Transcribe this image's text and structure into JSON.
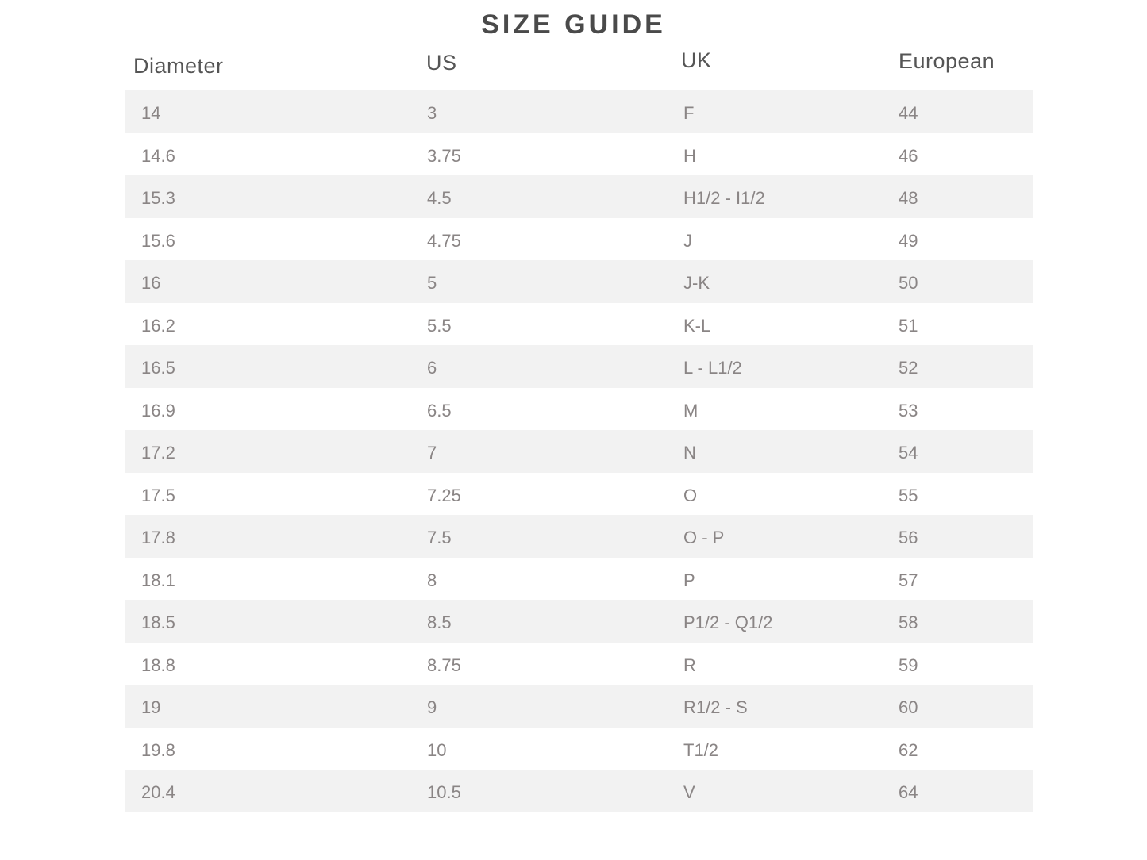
{
  "title": "SIZE GUIDE",
  "headers": [
    "Diameter",
    "US",
    "UK",
    "European"
  ],
  "rows": [
    [
      "14",
      "3",
      "F",
      "44"
    ],
    [
      "14.6",
      "3.75",
      "H",
      "46"
    ],
    [
      "15.3",
      "4.5",
      "H1/2 - I1/2",
      "48"
    ],
    [
      "15.6",
      "4.75",
      "J",
      "49"
    ],
    [
      "16",
      "5",
      "J-K",
      "50"
    ],
    [
      "16.2",
      "5.5",
      "K-L",
      "51"
    ],
    [
      "16.5",
      "6",
      "L - L1/2",
      "52"
    ],
    [
      "16.9",
      "6.5",
      "M",
      "53"
    ],
    [
      "17.2",
      "7",
      "N",
      "54"
    ],
    [
      "17.5",
      "7.25",
      "O",
      "55"
    ],
    [
      "17.8",
      "7.5",
      "O - P",
      "56"
    ],
    [
      "18.1",
      "8",
      "P",
      "57"
    ],
    [
      "18.5",
      "8.5",
      "P1/2 - Q1/2",
      "58"
    ],
    [
      "18.8",
      "8.75",
      "R",
      "59"
    ],
    [
      "19",
      "9",
      "R1/2 - S",
      "60"
    ],
    [
      "19.8",
      "10",
      "T1/2",
      "62"
    ],
    [
      "20.4",
      "10.5",
      "V",
      "64"
    ]
  ],
  "colors": {
    "stripe": "#f2f2f2",
    "text": "#8a8585",
    "heading": "#4a4a4a"
  }
}
